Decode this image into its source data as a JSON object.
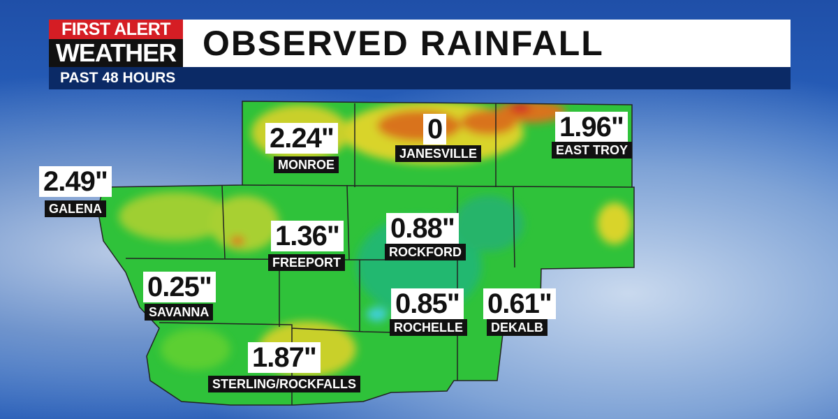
{
  "header": {
    "logo_top": "FIRST ALERT",
    "logo_bottom": "WEATHER",
    "title": "OBSERVED RAINFALL",
    "subtitle": "PAST 48 HOURS"
  },
  "locations": [
    {
      "name": "GALENA",
      "value": "2.49\""
    },
    {
      "name": "MONROE",
      "value": "2.24\""
    },
    {
      "name": "JANESVILLE",
      "value": "0"
    },
    {
      "name": "EAST TROY",
      "value": "1.96\""
    },
    {
      "name": "FREEPORT",
      "value": "1.36\""
    },
    {
      "name": "ROCKFORD",
      "value": "0.88\""
    },
    {
      "name": "SAVANNA",
      "value": "0.25\""
    },
    {
      "name": "ROCHELLE",
      "value": "0.85\""
    },
    {
      "name": "DEKALB",
      "value": "0.61\""
    },
    {
      "name": "STERLING/ROCKFALLS",
      "value": "1.87\""
    }
  ]
}
